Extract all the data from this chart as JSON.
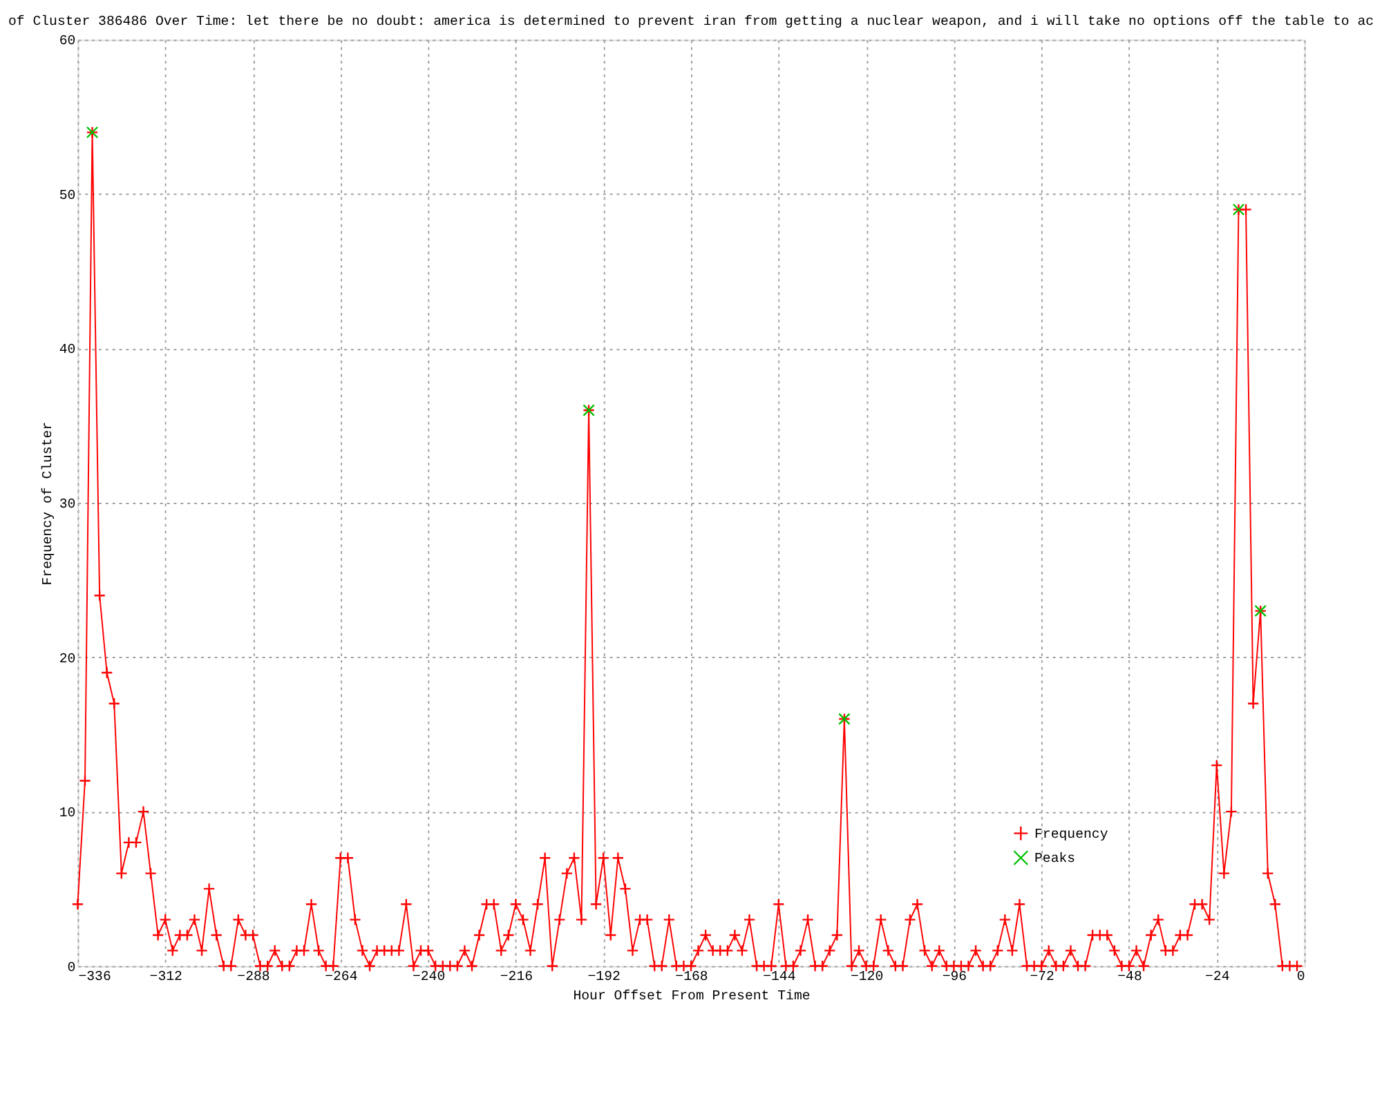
{
  "chart_data": {
    "type": "line",
    "title": "of Cluster 386486 Over Time: let there be no doubt: america is determined to prevent iran from getting a nuclear weapon, and i will take no options off the table to ac",
    "xlabel": "Hour Offset From Present Time",
    "ylabel": "Frequency of Cluster",
    "xlim": [
      -336,
      0
    ],
    "xticks": [
      -336,
      -312,
      -288,
      -264,
      -240,
      -216,
      -192,
      -168,
      -144,
      -120,
      -96,
      -72,
      -48,
      -24,
      0
    ],
    "ylim": [
      0,
      60
    ],
    "yticks": [
      0,
      10,
      20,
      30,
      40,
      50,
      60
    ],
    "grid": true,
    "legend": "bottom right",
    "series": [
      {
        "name": "Frequency",
        "color": "#ff0000",
        "marker": "cross",
        "x": [
          -336,
          -334,
          -332,
          -330,
          -328,
          -326,
          -324,
          -322,
          -320,
          -318,
          -316,
          -314,
          -312,
          -310,
          -308,
          -306,
          -304,
          -302,
          -300,
          -298,
          -296,
          -294,
          -292,
          -290,
          -288,
          -286,
          -284,
          -282,
          -280,
          -278,
          -276,
          -274,
          -272,
          -270,
          -268,
          -266,
          -264,
          -262,
          -260,
          -258,
          -256,
          -254,
          -252,
          -250,
          -248,
          -246,
          -244,
          -242,
          -240,
          -238,
          -236,
          -234,
          -232,
          -230,
          -228,
          -226,
          -224,
          -222,
          -220,
          -218,
          -216,
          -214,
          -212,
          -210,
          -208,
          -206,
          -204,
          -202,
          -200,
          -198,
          -196,
          -194,
          -192,
          -190,
          -188,
          -186,
          -184,
          -182,
          -180,
          -178,
          -176,
          -174,
          -172,
          -170,
          -168,
          -166,
          -164,
          -162,
          -160,
          -158,
          -156,
          -154,
          -152,
          -150,
          -148,
          -146,
          -144,
          -142,
          -140,
          -138,
          -136,
          -134,
          -132,
          -130,
          -128,
          -126,
          -124,
          -122,
          -120,
          -118,
          -116,
          -114,
          -112,
          -110,
          -108,
          -106,
          -104,
          -102,
          -100,
          -98,
          -96,
          -94,
          -92,
          -90,
          -88,
          -86,
          -84,
          -82,
          -80,
          -78,
          -76,
          -74,
          -72,
          -70,
          -68,
          -66,
          -64,
          -62,
          -60,
          -58,
          -56,
          -54,
          -52,
          -50,
          -48,
          -46,
          -44,
          -42,
          -40,
          -38,
          -36,
          -34,
          -32,
          -30,
          -28,
          -26,
          -24,
          -22,
          -20,
          -18,
          -16,
          -14,
          -12,
          -10,
          -8,
          -6,
          -4,
          -2
        ],
        "values": [
          4,
          12,
          54,
          24,
          19,
          17,
          6,
          8,
          8,
          10,
          6,
          2,
          3,
          1,
          2,
          2,
          3,
          1,
          5,
          2,
          0,
          0,
          3,
          2,
          2,
          0,
          0,
          1,
          0,
          0,
          1,
          1,
          4,
          1,
          0,
          0,
          7,
          7,
          3,
          1,
          0,
          1,
          1,
          1,
          1,
          4,
          0,
          1,
          1,
          0,
          0,
          0,
          0,
          1,
          0,
          2,
          4,
          4,
          1,
          2,
          4,
          3,
          1,
          4,
          7,
          0,
          3,
          6,
          7,
          3,
          36,
          4,
          7,
          2,
          7,
          5,
          1,
          3,
          3,
          0,
          0,
          3,
          0,
          0,
          0,
          1,
          2,
          1,
          1,
          1,
          2,
          1,
          3,
          0,
          0,
          0,
          4,
          0,
          0,
          1,
          3,
          0,
          0,
          1,
          2,
          16,
          0,
          1,
          0,
          0,
          3,
          1,
          0,
          0,
          3,
          4,
          1,
          0,
          1,
          0,
          0,
          0,
          0,
          1,
          0,
          0,
          1,
          3,
          1,
          4,
          0,
          0,
          0,
          1,
          0,
          0,
          1,
          0,
          0,
          2,
          2,
          2,
          1,
          0,
          0,
          1,
          0,
          2,
          3,
          1,
          1,
          2,
          2,
          4,
          4,
          3,
          13,
          6,
          10,
          49,
          49,
          17,
          23,
          6,
          4,
          0,
          0,
          0
        ]
      },
      {
        "name": "Peaks",
        "type": "scatter",
        "color": "#00c000",
        "marker": "cross",
        "x": [
          -332,
          -196,
          -126,
          -18,
          -12
        ],
        "values": [
          54,
          36,
          16,
          49,
          23
        ]
      }
    ]
  }
}
